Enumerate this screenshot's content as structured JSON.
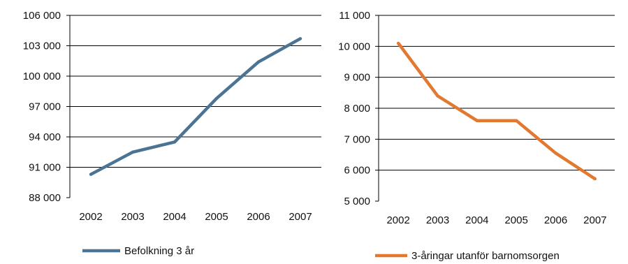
{
  "chart_data": [
    {
      "type": "line",
      "title": "",
      "xlabel": "",
      "ylabel": "",
      "x": [
        "2002",
        "2003",
        "2004",
        "2005",
        "2006",
        "2007"
      ],
      "ylim": [
        88000,
        106000
      ],
      "yticks": [
        88000,
        91000,
        94000,
        97000,
        100000,
        103000,
        106000
      ],
      "ytick_labels": [
        "88 000",
        "91 000",
        "94 000",
        "97 000",
        "100 000",
        "103 000",
        "106 000"
      ],
      "grid": true,
      "legend_position": "bottom",
      "series": [
        {
          "name": "Befolkning 3 år",
          "color": "#4a7394",
          "values": [
            90300,
            92500,
            93500,
            97800,
            101400,
            103700
          ]
        }
      ]
    },
    {
      "type": "line",
      "title": "",
      "xlabel": "",
      "ylabel": "",
      "x": [
        "2002",
        "2003",
        "2004",
        "2005",
        "2006",
        "2007"
      ],
      "ylim": [
        5000,
        11000
      ],
      "yticks": [
        5000,
        6000,
        7000,
        8000,
        9000,
        10000,
        11000
      ],
      "ytick_labels": [
        "5 000",
        "6 000",
        "7 000",
        "8 000",
        "9 000",
        "10 000",
        "11 000"
      ],
      "grid": true,
      "legend_position": "bottom",
      "series": [
        {
          "name": "3-åringar utanför barnomsorgen",
          "color": "#e2792f",
          "values": [
            10100,
            8400,
            7600,
            7600,
            6550,
            5720
          ]
        }
      ]
    }
  ]
}
